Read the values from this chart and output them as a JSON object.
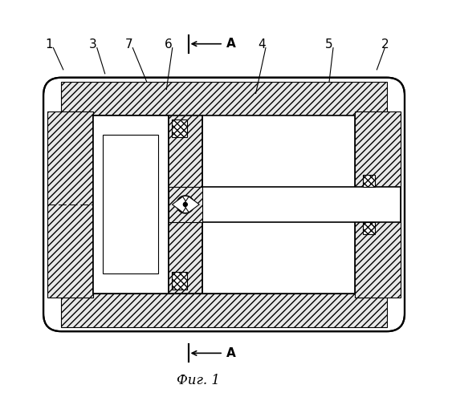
{
  "title": "Фиг. 1",
  "bg_color": "#ffffff",
  "line_color": "#000000",
  "hatch_color": "#000000",
  "label_fontsize": 11,
  "caption_fontsize": 12,
  "labels": [
    "1",
    "2",
    "3",
    "4",
    "5",
    "6",
    "7"
  ]
}
